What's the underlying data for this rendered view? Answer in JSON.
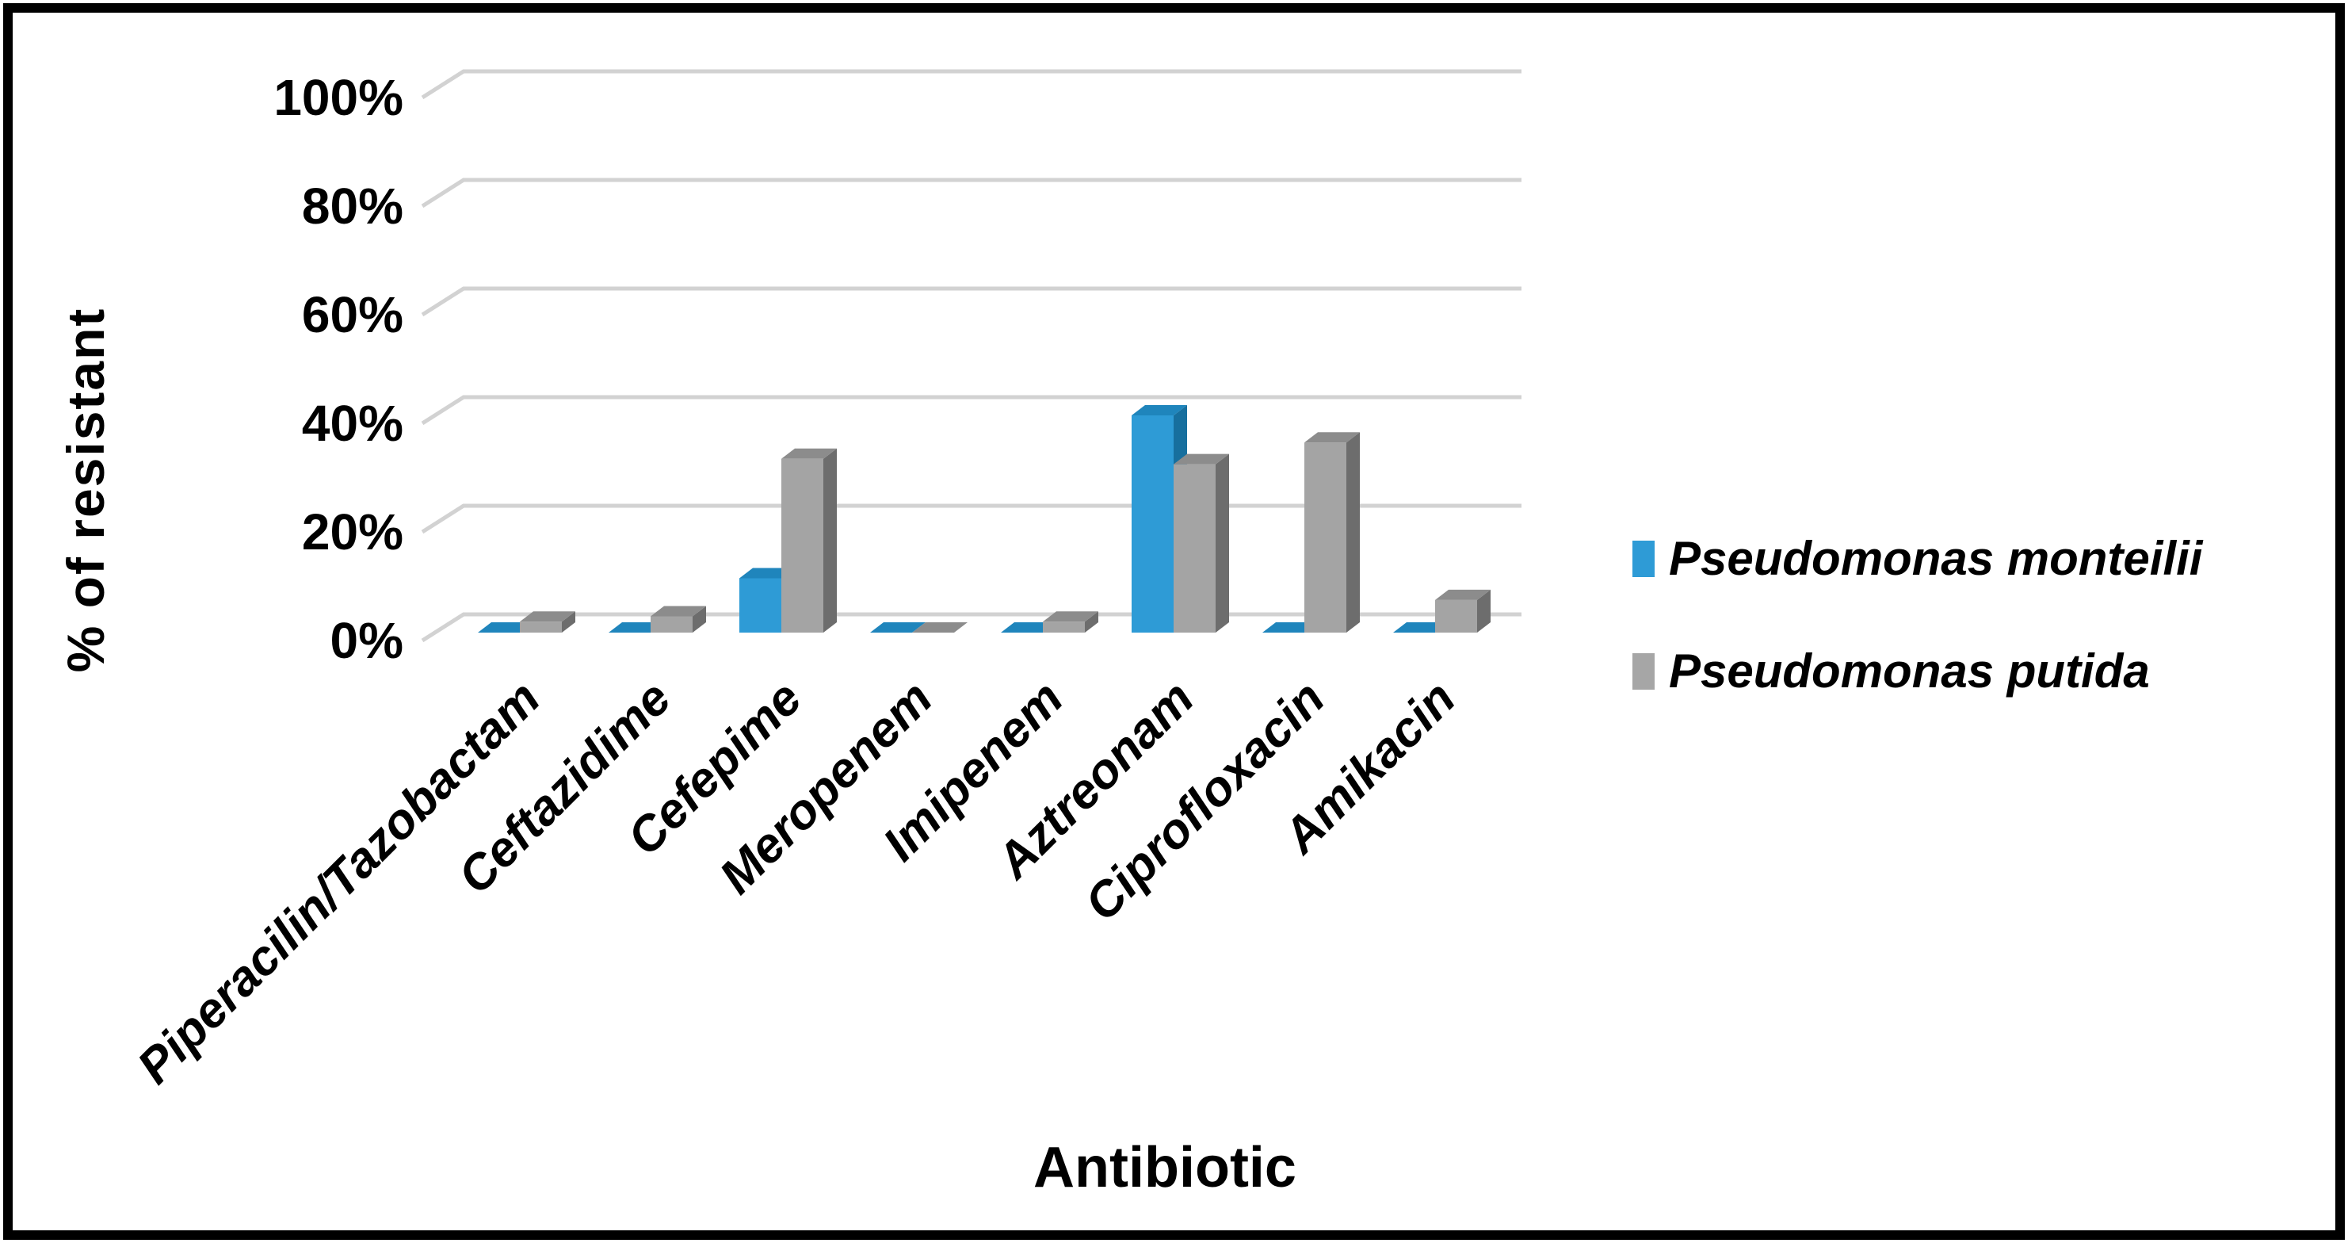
{
  "chart_data": {
    "type": "bar",
    "variant": "3d-clustered-column",
    "title": "",
    "xlabel": "Antibiotic",
    "ylabel": "% of resistant",
    "categories": [
      "Piperacilin/Tazobactam",
      "Ceftazidime",
      "Cefepime",
      "Meropenem",
      "Imipenem",
      "Aztreonam",
      "Ciprofloxacin",
      "Amikacin"
    ],
    "series": [
      {
        "name": "Pseudomonas monteilii",
        "values": [
          0,
          0,
          10,
          0,
          0,
          40,
          0,
          0
        ],
        "color": "#2E9BD6",
        "shades": {
          "front": "#2E9BD6",
          "top": "#1F85BC",
          "side": "#176F9E"
        }
      },
      {
        "name": "Pseudomonas putida",
        "values": [
          2,
          3,
          32,
          0,
          2,
          31,
          35,
          6
        ],
        "color": "#A6A6A6",
        "shades": {
          "front": "#A4A4A4",
          "top": "#8C8C8C",
          "side": "#6D6D6D"
        }
      }
    ],
    "y_ticks": [
      "0%",
      "20%",
      "40%",
      "60%",
      "80%",
      "100%"
    ],
    "ylim": [
      0,
      100
    ],
    "grid": true,
    "gridline_color": "#D2D2D2",
    "legend_position": "right"
  },
  "legend": {
    "items": [
      {
        "label": "Pseudomonas monteilii",
        "color": "#2E9BD6"
      },
      {
        "label": "Pseudomonas putida",
        "color": "#A6A6A6"
      }
    ]
  },
  "frame": {
    "border_color": "#000000",
    "background": "#FFFFFF"
  }
}
